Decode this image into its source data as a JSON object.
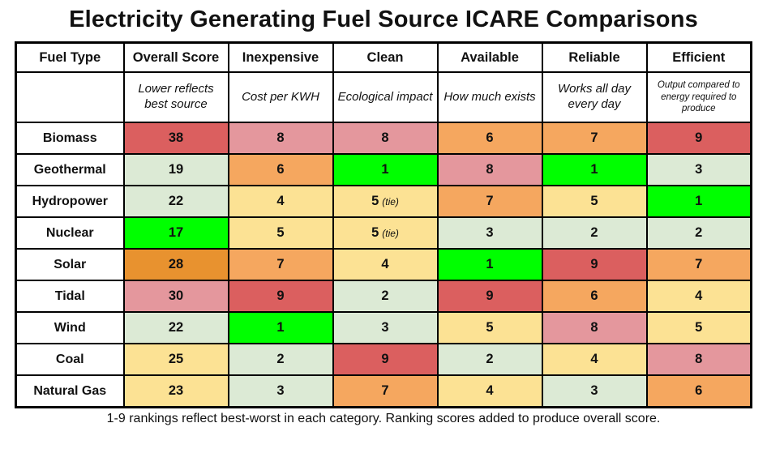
{
  "title": "Electricity Generating Fuel Source ICARE Comparisons",
  "footer": "1-9 rankings reflect best-worst in each category. Ranking scores added to produce overall score.",
  "colors": {
    "green": "#00ff00",
    "light_green": "#dcead5",
    "yellow": "#fce294",
    "orange": "#f5a75f",
    "dark_orange": "#e8922f",
    "pink": "#e4979d",
    "red": "#db5f5f",
    "white": "#ffffff"
  },
  "chart_data": {
    "type": "table",
    "title": "Electricity Generating Fuel Source ICARE Comparisons",
    "note": "1-9 rankings reflect best-worst in each category. Ranking scores added to produce overall score.",
    "columns": [
      {
        "label": "Fuel Type",
        "subtitle": "",
        "subtitle_small": false
      },
      {
        "label": "Overall Score",
        "subtitle": "Lower reflects best source",
        "subtitle_small": false
      },
      {
        "label": "Inexpensive",
        "subtitle": "Cost per KWH",
        "subtitle_small": false
      },
      {
        "label": "Clean",
        "subtitle": "Ecological impact",
        "subtitle_small": false
      },
      {
        "label": "Available",
        "subtitle": "How much exists",
        "subtitle_small": false
      },
      {
        "label": "Reliable",
        "subtitle": "Works all day every day",
        "subtitle_small": false
      },
      {
        "label": "Efficient",
        "subtitle": "Output compared to energy required to produce",
        "subtitle_small": true
      }
    ],
    "rows": [
      {
        "fuel": "Biomass",
        "cells": [
          {
            "value": "38",
            "color": "red"
          },
          {
            "value": "8",
            "color": "pink"
          },
          {
            "value": "8",
            "color": "pink"
          },
          {
            "value": "6",
            "color": "orange"
          },
          {
            "value": "7",
            "color": "orange"
          },
          {
            "value": "9",
            "color": "red"
          }
        ]
      },
      {
        "fuel": "Geothermal",
        "cells": [
          {
            "value": "19",
            "color": "light_green"
          },
          {
            "value": "6",
            "color": "orange"
          },
          {
            "value": "1",
            "color": "green"
          },
          {
            "value": "8",
            "color": "pink"
          },
          {
            "value": "1",
            "color": "green"
          },
          {
            "value": "3",
            "color": "light_green"
          }
        ]
      },
      {
        "fuel": "Hydropower",
        "cells": [
          {
            "value": "22",
            "color": "light_green"
          },
          {
            "value": "4",
            "color": "yellow"
          },
          {
            "value": "5",
            "note": "(tie)",
            "color": "yellow"
          },
          {
            "value": "7",
            "color": "orange"
          },
          {
            "value": "5",
            "color": "yellow"
          },
          {
            "value": "1",
            "color": "green"
          }
        ]
      },
      {
        "fuel": "Nuclear",
        "cells": [
          {
            "value": "17",
            "color": "green"
          },
          {
            "value": "5",
            "color": "yellow"
          },
          {
            "value": "5",
            "note": "(tie)",
            "color": "yellow"
          },
          {
            "value": "3",
            "color": "light_green"
          },
          {
            "value": "2",
            "color": "light_green"
          },
          {
            "value": "2",
            "color": "light_green"
          }
        ]
      },
      {
        "fuel": "Solar",
        "cells": [
          {
            "value": "28",
            "color": "dark_orange"
          },
          {
            "value": "7",
            "color": "orange"
          },
          {
            "value": "4",
            "color": "yellow"
          },
          {
            "value": "1",
            "color": "green"
          },
          {
            "value": "9",
            "color": "red"
          },
          {
            "value": "7",
            "color": "orange"
          }
        ]
      },
      {
        "fuel": "Tidal",
        "cells": [
          {
            "value": "30",
            "color": "pink"
          },
          {
            "value": "9",
            "color": "red"
          },
          {
            "value": "2",
            "color": "light_green"
          },
          {
            "value": "9",
            "color": "red"
          },
          {
            "value": "6",
            "color": "orange"
          },
          {
            "value": "4",
            "color": "yellow"
          }
        ]
      },
      {
        "fuel": "Wind",
        "cells": [
          {
            "value": "22",
            "color": "light_green"
          },
          {
            "value": "1",
            "color": "green"
          },
          {
            "value": "3",
            "color": "light_green"
          },
          {
            "value": "5",
            "color": "yellow"
          },
          {
            "value": "8",
            "color": "pink"
          },
          {
            "value": "5",
            "color": "yellow"
          }
        ]
      },
      {
        "fuel": "Coal",
        "cells": [
          {
            "value": "25",
            "color": "yellow"
          },
          {
            "value": "2",
            "color": "light_green"
          },
          {
            "value": "9",
            "color": "red"
          },
          {
            "value": "2",
            "color": "light_green"
          },
          {
            "value": "4",
            "color": "yellow"
          },
          {
            "value": "8",
            "color": "pink"
          }
        ]
      },
      {
        "fuel": "Natural Gas",
        "cells": [
          {
            "value": "23",
            "color": "yellow"
          },
          {
            "value": "3",
            "color": "light_green"
          },
          {
            "value": "7",
            "color": "orange"
          },
          {
            "value": "4",
            "color": "yellow"
          },
          {
            "value": "3",
            "color": "light_green"
          },
          {
            "value": "6",
            "color": "orange"
          }
        ]
      }
    ]
  }
}
